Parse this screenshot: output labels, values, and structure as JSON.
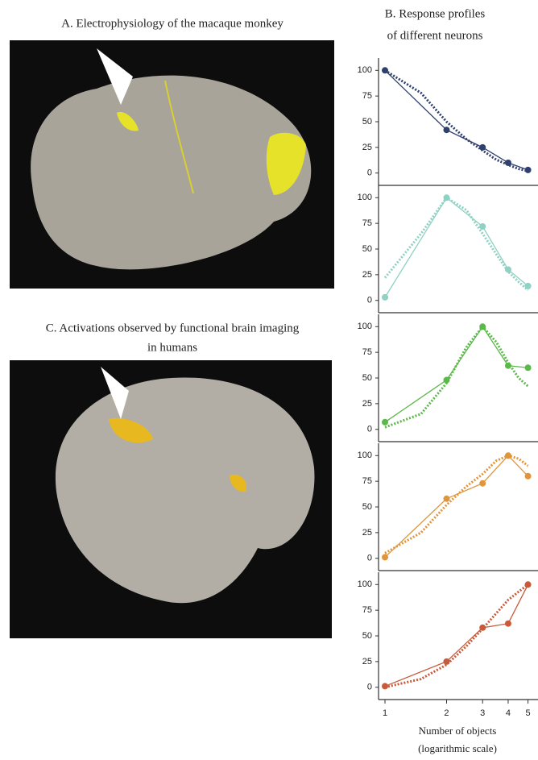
{
  "panel_a": {
    "title": "A. Electrophysiology of the macaque monkey"
  },
  "panel_b": {
    "title_lines": [
      "B. Response profiles",
      "of different neurons"
    ]
  },
  "panel_c": {
    "title_lines": [
      "C. Activations observed by functional brain imaging",
      "in humans"
    ]
  },
  "chart_data": [
    {
      "type": "line",
      "x": [
        1,
        2,
        3,
        4,
        5
      ],
      "xscale": "log",
      "xlim": [
        0.93,
        5.3
      ],
      "ylim": [
        -12,
        112
      ],
      "yticks": [
        0,
        25,
        50,
        75,
        100
      ],
      "series": [
        {
          "color": "#2f3f6e",
          "values": [
            100,
            42,
            25,
            10,
            3
          ]
        }
      ],
      "fit": {
        "x": [
          1,
          1.5,
          2,
          2.5,
          3,
          3.5,
          4,
          4.5,
          5
        ],
        "values": [
          100,
          78,
          50,
          33,
          22,
          13,
          8,
          4,
          2
        ],
        "color": "#2f3f6e"
      }
    },
    {
      "type": "line",
      "x": [
        1,
        2,
        3,
        4,
        5
      ],
      "xscale": "log",
      "xlim": [
        0.93,
        5.3
      ],
      "ylim": [
        -12,
        112
      ],
      "yticks": [
        0,
        25,
        50,
        75,
        100
      ],
      "series": [
        {
          "color": "#8fd1c2",
          "values": [
            3,
            100,
            72,
            30,
            14
          ]
        }
      ],
      "fit": {
        "x": [
          1,
          1.5,
          2,
          2.5,
          3,
          3.5,
          4,
          4.5,
          5
        ],
        "values": [
          22,
          65,
          100,
          88,
          65,
          45,
          28,
          18,
          10
        ],
        "color": "#8fd1c2"
      }
    },
    {
      "type": "line",
      "x": [
        1,
        2,
        3,
        4,
        5
      ],
      "xscale": "log",
      "xlim": [
        0.93,
        5.3
      ],
      "ylim": [
        -12,
        112
      ],
      "yticks": [
        0,
        25,
        50,
        75,
        100
      ],
      "series": [
        {
          "color": "#5cb84a",
          "values": [
            7,
            48,
            100,
            62,
            60
          ]
        }
      ],
      "fit": {
        "x": [
          1,
          1.5,
          2,
          2.5,
          3,
          3.5,
          4,
          4.5,
          5
        ],
        "values": [
          2,
          15,
          45,
          80,
          100,
          85,
          65,
          50,
          42
        ],
        "color": "#5cb84a"
      }
    },
    {
      "type": "line",
      "x": [
        1,
        2,
        3,
        4,
        5
      ],
      "xscale": "log",
      "xlim": [
        0.93,
        5.3
      ],
      "ylim": [
        -12,
        112
      ],
      "yticks": [
        0,
        25,
        50,
        75,
        100
      ],
      "series": [
        {
          "color": "#e0953a",
          "values": [
            1,
            58,
            73,
            100,
            80
          ]
        }
      ],
      "fit": {
        "x": [
          1,
          1.5,
          2,
          2.5,
          3,
          3.5,
          4,
          4.5,
          5
        ],
        "values": [
          5,
          25,
          52,
          70,
          82,
          95,
          100,
          97,
          90
        ],
        "color": "#e0953a"
      }
    },
    {
      "type": "line",
      "x": [
        1,
        2,
        3,
        4,
        5
      ],
      "xscale": "log",
      "xlim": [
        0.93,
        5.3
      ],
      "ylim": [
        -12,
        112
      ],
      "yticks": [
        0,
        25,
        50,
        75,
        100
      ],
      "xticks": [
        1,
        2,
        3,
        4,
        5
      ],
      "xlabel_lines": [
        "Number of objects",
        "(logarithmic scale)"
      ],
      "series": [
        {
          "color": "#c85a3a",
          "values": [
            1,
            25,
            58,
            62,
            100
          ]
        }
      ],
      "fit": {
        "x": [
          1,
          1.5,
          2,
          2.5,
          3,
          3.5,
          4,
          4.5,
          5
        ],
        "values": [
          0,
          8,
          22,
          40,
          57,
          72,
          85,
          93,
          100
        ],
        "color": "#c85a3a"
      }
    }
  ]
}
